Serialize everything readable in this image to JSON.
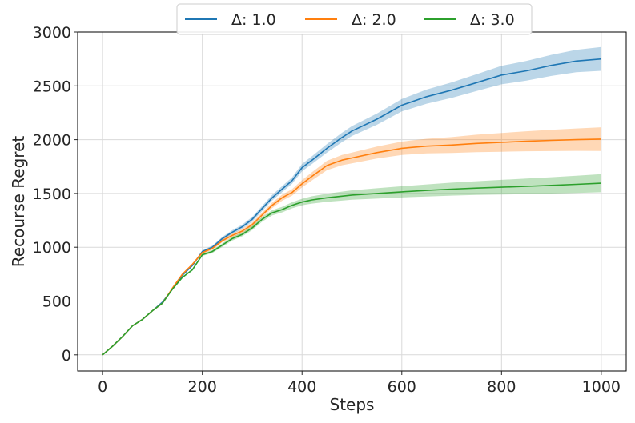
{
  "chart_data": {
    "type": "line",
    "xlabel": "Steps",
    "ylabel": "Recourse Regret",
    "xlim": [
      -50,
      1050
    ],
    "ylim": [
      -150,
      3000
    ],
    "xticks": [
      0,
      200,
      400,
      600,
      800,
      1000
    ],
    "yticks": [
      0,
      500,
      1000,
      1500,
      2000,
      2500,
      3000
    ],
    "xtick_labels": [
      "0",
      "200",
      "400",
      "600",
      "800",
      "1000"
    ],
    "ytick_labels": [
      "0",
      "500",
      "1000",
      "1500",
      "2000",
      "2500",
      "3000"
    ],
    "grid": true,
    "legend_position": "top-center",
    "x": [
      0,
      20,
      40,
      60,
      80,
      100,
      120,
      140,
      160,
      180,
      200,
      220,
      240,
      260,
      280,
      300,
      320,
      340,
      360,
      380,
      400,
      420,
      450,
      480,
      500,
      550,
      600,
      650,
      700,
      750,
      800,
      850,
      900,
      950,
      1000
    ],
    "series": [
      {
        "name": "Δ: 1.0",
        "color": "#1f77b4",
        "values": [
          0,
          80,
          170,
          270,
          330,
          410,
          490,
          610,
          740,
          830,
          960,
          1000,
          1080,
          1140,
          1190,
          1260,
          1360,
          1460,
          1540,
          1620,
          1740,
          1810,
          1920,
          2020,
          2080,
          2190,
          2320,
          2400,
          2460,
          2530,
          2600,
          2640,
          2690,
          2730,
          2750
        ],
        "band_lower": [
          0,
          80,
          170,
          270,
          330,
          408,
          486,
          604,
          732,
          820,
          948,
          986,
          1064,
          1122,
          1170,
          1238,
          1336,
          1434,
          1512,
          1590,
          1706,
          1774,
          1880,
          1976,
          2034,
          2138,
          2262,
          2334,
          2388,
          2452,
          2514,
          2548,
          2592,
          2626,
          2640
        ],
        "band_upper": [
          0,
          80,
          170,
          270,
          330,
          412,
          494,
          616,
          748,
          840,
          972,
          1014,
          1096,
          1158,
          1210,
          1282,
          1384,
          1486,
          1568,
          1650,
          1774,
          1846,
          1960,
          2064,
          2126,
          2242,
          2378,
          2466,
          2532,
          2608,
          2686,
          2732,
          2788,
          2834,
          2860
        ]
      },
      {
        "name": "Δ: 2.0",
        "color": "#ff7f0e",
        "values": [
          0,
          80,
          170,
          270,
          330,
          410,
          480,
          620,
          750,
          840,
          950,
          990,
          1060,
          1110,
          1150,
          1210,
          1300,
          1390,
          1460,
          1510,
          1590,
          1660,
          1760,
          1810,
          1830,
          1880,
          1920,
          1940,
          1950,
          1965,
          1975,
          1985,
          1993,
          2000,
          2005
        ],
        "band_lower": [
          0,
          80,
          170,
          270,
          330,
          408,
          476,
          614,
          742,
          830,
          938,
          976,
          1044,
          1092,
          1130,
          1188,
          1276,
          1364,
          1432,
          1480,
          1556,
          1622,
          1716,
          1762,
          1780,
          1824,
          1858,
          1872,
          1876,
          1884,
          1888,
          1892,
          1894,
          1896,
          1895
        ],
        "band_upper": [
          0,
          80,
          170,
          270,
          330,
          412,
          484,
          626,
          758,
          850,
          962,
          1004,
          1076,
          1128,
          1170,
          1232,
          1324,
          1416,
          1488,
          1540,
          1624,
          1698,
          1804,
          1858,
          1880,
          1936,
          1982,
          2008,
          2024,
          2046,
          2062,
          2078,
          2092,
          2104,
          2115
        ]
      },
      {
        "name": "Δ: 3.0",
        "color": "#2ca02c",
        "values": [
          0,
          80,
          170,
          270,
          330,
          410,
          480,
          610,
          720,
          790,
          930,
          960,
          1020,
          1080,
          1120,
          1180,
          1260,
          1320,
          1350,
          1390,
          1420,
          1440,
          1460,
          1475,
          1485,
          1500,
          1515,
          1528,
          1540,
          1550,
          1558,
          1566,
          1575,
          1585,
          1595
        ],
        "band_lower": [
          0,
          80,
          170,
          270,
          330,
          408,
          476,
          604,
          712,
          780,
          918,
          946,
          1004,
          1062,
          1102,
          1160,
          1238,
          1296,
          1324,
          1362,
          1390,
          1406,
          1422,
          1433,
          1441,
          1452,
          1463,
          1472,
          1480,
          1486,
          1490,
          1494,
          1499,
          1505,
          1511
        ],
        "band_upper": [
          0,
          80,
          170,
          270,
          330,
          412,
          484,
          616,
          728,
          800,
          942,
          974,
          1036,
          1098,
          1138,
          1200,
          1282,
          1344,
          1376,
          1418,
          1450,
          1474,
          1498,
          1517,
          1529,
          1548,
          1567,
          1584,
          1600,
          1614,
          1626,
          1638,
          1651,
          1665,
          1679
        ]
      }
    ]
  }
}
